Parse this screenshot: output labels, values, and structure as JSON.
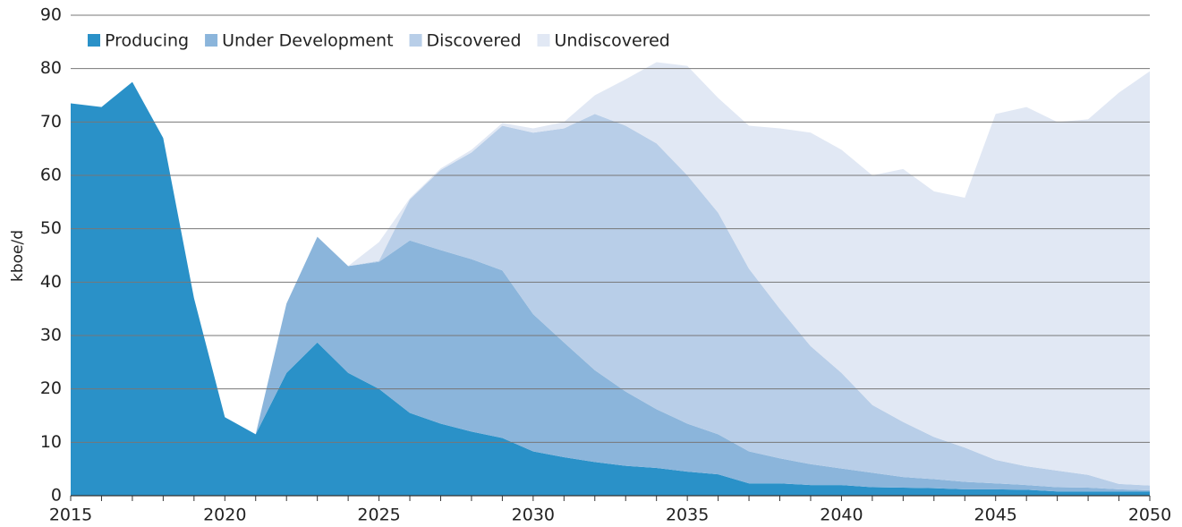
{
  "chart_data": {
    "type": "stacked-area",
    "y_label": "kboe/d",
    "x": [
      2015,
      2016,
      2017,
      2018,
      2019,
      2020,
      2021,
      2022,
      2023,
      2024,
      2025,
      2026,
      2027,
      2028,
      2029,
      2030,
      2031,
      2032,
      2033,
      2034,
      2035,
      2036,
      2037,
      2038,
      2039,
      2040,
      2041,
      2042,
      2043,
      2044,
      2045,
      2046,
      2047,
      2048,
      2049,
      2050
    ],
    "series": [
      {
        "name": "Producing",
        "color": "#2a91c8",
        "values": [
          73.5,
          72.8,
          77.5,
          67,
          37,
          14.7,
          11.5,
          23,
          28.7,
          23,
          20,
          15.5,
          13.5,
          12,
          10.8,
          8.3,
          7.2,
          6.3,
          5.6,
          5.2,
          4.5,
          4,
          2.3,
          2.3,
          2,
          2,
          1.6,
          1.5,
          1.4,
          1.2,
          1.2,
          1.1,
          0.8,
          0.8,
          0.8,
          0.8
        ]
      },
      {
        "name": "Under Development",
        "color": "#8bb5db",
        "values": [
          0,
          0,
          0,
          0,
          0,
          0,
          0,
          13,
          19.8,
          20,
          23.8,
          32.3,
          32.5,
          32.3,
          31.4,
          25.7,
          21.5,
          17.2,
          13.9,
          11,
          9,
          7.5,
          6,
          4.7,
          3.9,
          3.1,
          2.7,
          2,
          1.7,
          1.4,
          1.1,
          0.9,
          0.8,
          0.7,
          0.4,
          0.2
        ]
      },
      {
        "name": "Discovered",
        "color": "#b8cee8",
        "values": [
          0,
          0,
          0,
          0,
          0,
          0,
          0,
          0,
          0,
          0,
          0.2,
          7.7,
          15,
          20,
          27.1,
          34,
          40.1,
          48,
          49.8,
          49.8,
          46.5,
          41.5,
          34.2,
          28,
          22.1,
          17.9,
          12.7,
          10.3,
          7.9,
          6.4,
          4.4,
          3.5,
          3.1,
          2.4,
          1,
          0.9
        ]
      },
      {
        "name": "Undiscovered",
        "color": "#e1e8f4",
        "values": [
          0,
          0,
          0,
          0,
          0,
          0,
          0,
          0,
          0,
          0,
          3.5,
          0.2,
          0.3,
          0.5,
          0.5,
          0.8,
          1.2,
          3.5,
          8.7,
          15.2,
          20.5,
          21.5,
          26.8,
          33.8,
          40,
          41.8,
          43,
          47.4,
          46,
          46.8,
          64.8,
          67.3,
          65.3,
          66.6,
          73.3,
          77.6
        ]
      }
    ],
    "xlim": [
      2015,
      2050
    ],
    "xticks": [
      2015,
      2020,
      2025,
      2030,
      2035,
      2040,
      2045,
      2050
    ],
    "ylim": [
      0,
      90
    ],
    "yticks": [
      0,
      10,
      20,
      30,
      40,
      50,
      60,
      70,
      80,
      90
    ],
    "grid": true,
    "legend": "top-left"
  }
}
